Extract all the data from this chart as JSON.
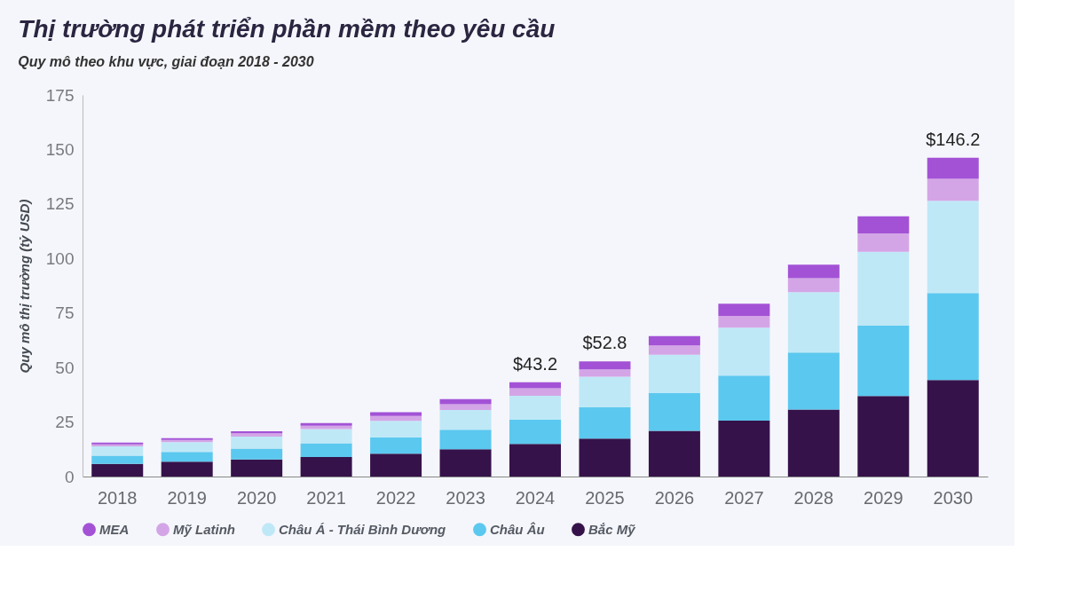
{
  "chart_data": {
    "type": "bar",
    "stacked": true,
    "title": "Thị trường phát triển phần mềm theo yêu cầu",
    "subtitle": "Quy mô theo khu vực, giai đoạn 2018 - 2030",
    "ylabel": "Quy mô thị trường (tỷ USD)",
    "categories": [
      "2018",
      "2019",
      "2020",
      "2021",
      "2022",
      "2023",
      "2024",
      "2025",
      "2026",
      "2027",
      "2028",
      "2029",
      "2030"
    ],
    "series": [
      {
        "name": "Bắc Mỹ",
        "color": "#36124a",
        "values": [
          5.8,
          6.8,
          7.8,
          9,
          10.5,
          12.5,
          15,
          17.4,
          21,
          25.6,
          30.7,
          36.9,
          44.3
        ]
      },
      {
        "name": "Châu Âu",
        "color": "#5bc8ef",
        "values": [
          3.8,
          4.5,
          5,
          6.3,
          7.5,
          9,
          11,
          14.4,
          17.3,
          20.7,
          26.2,
          32.3,
          39.8
        ]
      },
      {
        "name": "Châu Á - Thái Bình Dương",
        "color": "#bfe8f7",
        "values": [
          4.2,
          4.5,
          5.5,
          6.5,
          7.5,
          9,
          11,
          14,
          17.6,
          22,
          27.6,
          33.9,
          42.4
        ]
      },
      {
        "name": "Mỹ Latinh",
        "color": "#d4a5e6",
        "values": [
          1,
          1,
          1.5,
          1.5,
          2.3,
          2.7,
          3.5,
          3.3,
          4.2,
          5.4,
          6.5,
          8.4,
          10
        ]
      },
      {
        "name": "MEA",
        "color": "#a352d6",
        "values": [
          0.8,
          0.8,
          1,
          1.2,
          1.7,
          2.3,
          2.7,
          3.7,
          4.3,
          5.6,
          6.2,
          7.8,
          9.7
        ]
      }
    ],
    "totals": [
      null,
      null,
      null,
      null,
      null,
      null,
      "$43.2",
      "$52.8",
      null,
      null,
      null,
      null,
      "$146.2"
    ],
    "ylim": [
      0,
      175
    ],
    "yticks": [
      0,
      25,
      50,
      75,
      100,
      125,
      150,
      175
    ],
    "grid": false,
    "legend": "bottom"
  }
}
